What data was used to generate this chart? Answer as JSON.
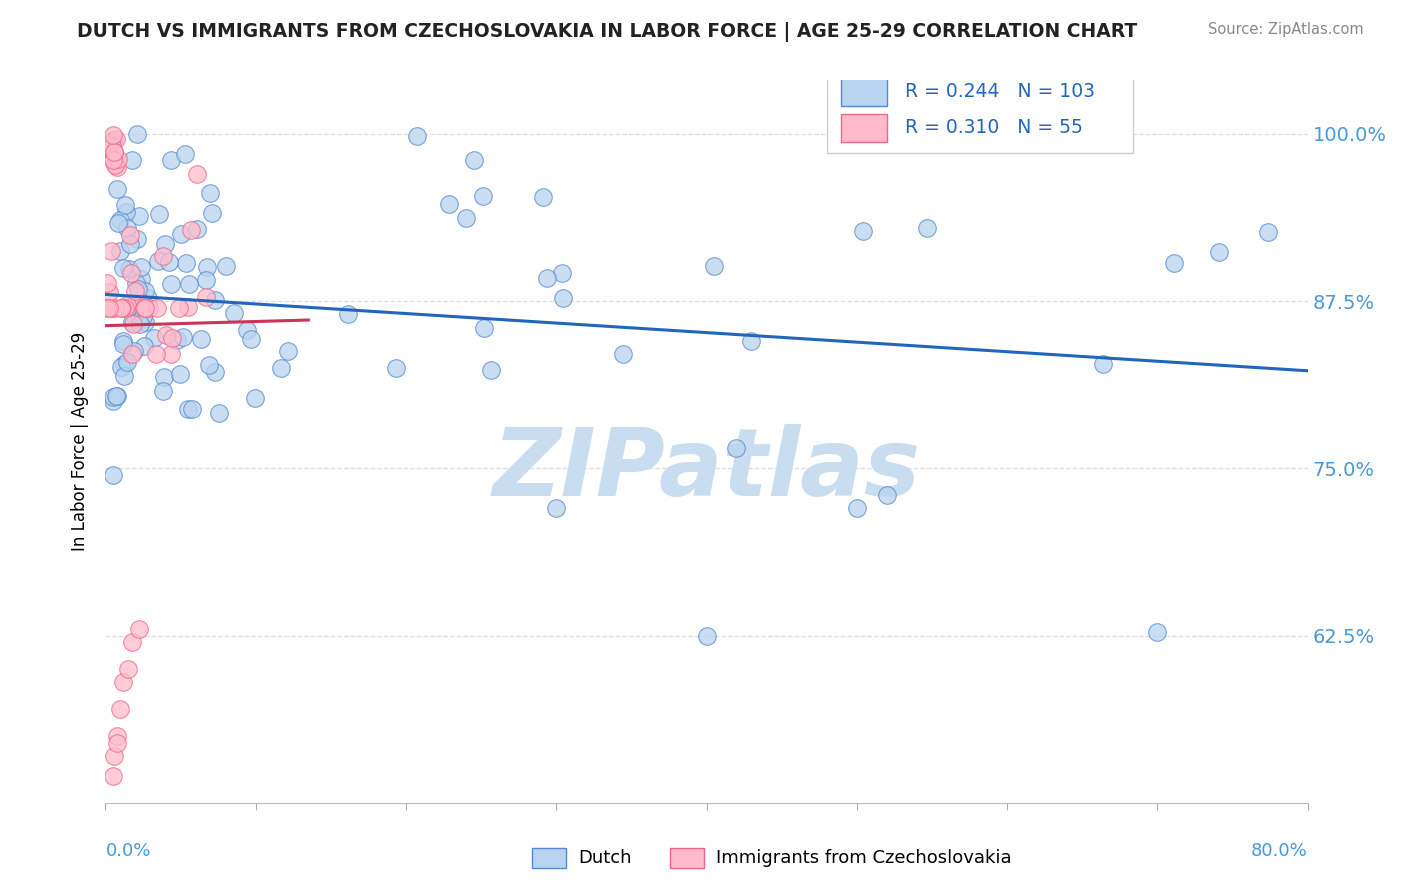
{
  "title": "DUTCH VS IMMIGRANTS FROM CZECHOSLOVAKIA IN LABOR FORCE | AGE 25-29 CORRELATION CHART",
  "source": "Source: ZipAtlas.com",
  "ylabel": "In Labor Force | Age 25-29",
  "xmin": 0.0,
  "xmax": 0.8,
  "ymin": 0.5,
  "ymax": 1.04,
  "yticks": [
    0.625,
    0.75,
    0.875,
    1.0
  ],
  "ytick_labels": [
    "62.5%",
    "75.0%",
    "87.5%",
    "100.0%"
  ],
  "legend_dutch_R": "0.244",
  "legend_dutch_N": "103",
  "legend_immigrants_R": "0.310",
  "legend_immigrants_N": "55",
  "dutch_color": "#b8d4f0",
  "dutch_edge_color": "#5588cc",
  "immigrants_color": "#ffbbcc",
  "immigrants_edge_color": "#ee6688",
  "dutch_trend_color": "#2266bb",
  "immigrants_trend_color": "#cc3355",
  "watermark": "ZIPatlas",
  "watermark_color": "#c8ddf0",
  "right_tick_color": "#4499dd",
  "bottom_label_color": "#4499dd",
  "grid_color": "#dddddd",
  "title_color": "#222222",
  "source_color": "#888888"
}
